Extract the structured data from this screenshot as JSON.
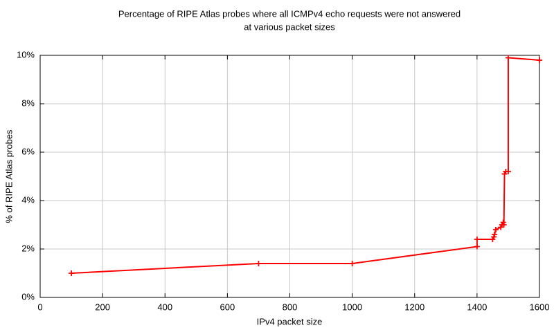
{
  "chart_data": {
    "type": "line",
    "title": [
      "Percentage of RIPE Atlas probes where all ICMPv4 echo requests were not answered",
      "at various packet sizes"
    ],
    "x_label": "IPv4 packet size",
    "y_label": "% of RIPE Atlas probes",
    "x": [
      100,
      700,
      1000,
      1400,
      1400,
      1450,
      1454,
      1456,
      1460,
      1476,
      1480,
      1484,
      1486,
      1488,
      1492,
      1500,
      1500,
      1600
    ],
    "series": [
      {
        "color": "#ff0000",
        "values": [
          1.0,
          1.4,
          1.4,
          2.1,
          2.4,
          2.4,
          2.5,
          2.6,
          2.8,
          2.9,
          3.0,
          3.1,
          3.0,
          5.1,
          5.2,
          5.2,
          9.9,
          9.8
        ]
      }
    ],
    "xlim": [
      0,
      1600
    ],
    "xticks": [
      0,
      200,
      400,
      600,
      800,
      1000,
      1200,
      1400,
      1600
    ],
    "ylim": [
      0,
      10
    ],
    "yticks": [
      {
        "value": 0,
        "label": "0%"
      },
      {
        "value": 2,
        "label": "2%"
      },
      {
        "value": 4,
        "label": "4%"
      },
      {
        "value": 6,
        "label": "6%"
      },
      {
        "value": 8,
        "label": "8%"
      },
      {
        "value": 10,
        "label": "10%"
      }
    ],
    "grid": true,
    "markers": "plus"
  }
}
